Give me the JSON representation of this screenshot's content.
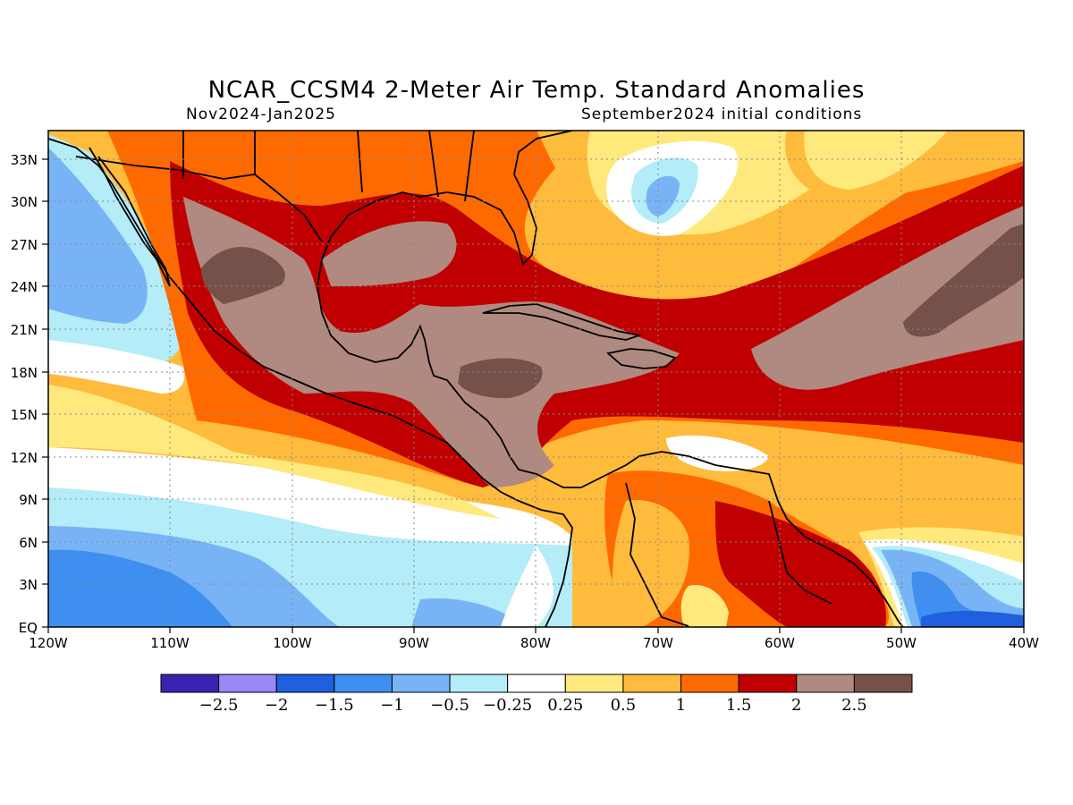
{
  "title": "NCAR_CCSM4 2-Meter Air Temp. Standard Anomalies",
  "subtitle_left": "Nov2024-Jan2025",
  "subtitle_right": "September2024 initial conditions",
  "map": {
    "lon_range": [
      -120,
      -40
    ],
    "lat_range": [
      0,
      35
    ],
    "gridlines": "dotted",
    "lon_ticks": [
      "120W",
      "110W",
      "100W",
      "90W",
      "80W",
      "70W",
      "60W",
      "50W",
      "40W"
    ],
    "lat_ticks": [
      "EQ",
      "3N",
      "6N",
      "9N",
      "12N",
      "15N",
      "18N",
      "21N",
      "24N",
      "27N",
      "30N",
      "33N"
    ]
  },
  "colorbar": {
    "colors": [
      "#3a22b0",
      "#9b87f5",
      "#1f5fe0",
      "#3f8ff0",
      "#78b4f5",
      "#b4ecf8",
      "#ffffff",
      "#ffe97d",
      "#ffbb3c",
      "#ff6a00",
      "#c00000",
      "#b08a80",
      "#76514a"
    ],
    "labels": [
      "-2.5",
      "-2",
      "-1.5",
      "-1",
      "-0.5",
      "-0.25",
      "0.25",
      "0.5",
      "1",
      "1.5",
      "2",
      "2.5"
    ]
  }
}
